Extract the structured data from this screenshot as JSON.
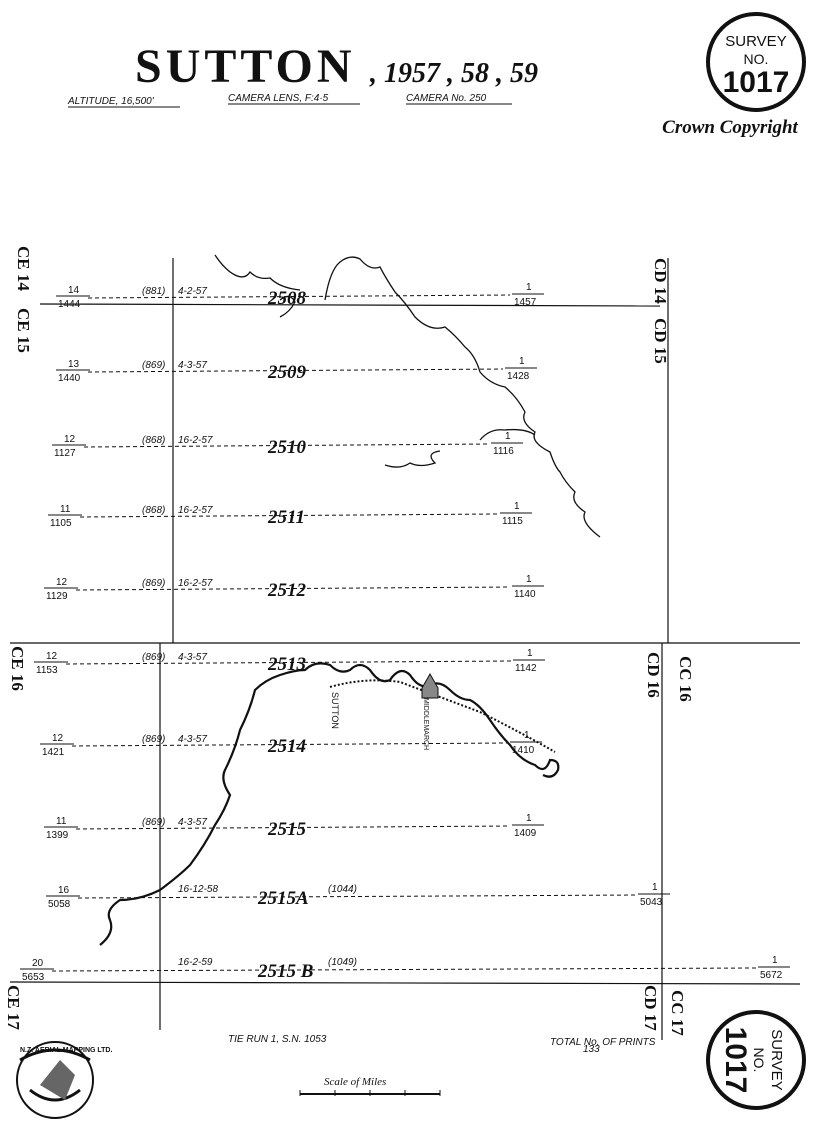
{
  "header": {
    "title": "SUTTON",
    "years": ", 1957 , 58 , 59",
    "altitude": "ALTITUDE, 16,500'",
    "lens": "CAMERA LENS, F:4·5",
    "camera": "CAMERA No. 250",
    "copyright": "Crown Copyright"
  },
  "badge": {
    "survey": "SURVEY",
    "no": "NO.",
    "number": "1017"
  },
  "grid_labels": {
    "ce14": "CE 14",
    "ce15": "CE 15",
    "cd14": "CD 14",
    "cd15": "CD 15",
    "ce16": "CE 16",
    "cd16": "CD 16",
    "cc16": "CC 16",
    "ce17": "CE 17",
    "cd17": "CD 17",
    "cc17": "CC 17"
  },
  "runs": [
    {
      "name": "2508",
      "left_top": "14",
      "left_bottom": "1444",
      "ref": "(881)",
      "date": "4-2-57",
      "right_top": "1",
      "right_bottom": "1457"
    },
    {
      "name": "2509",
      "left_top": "13",
      "left_bottom": "1440",
      "ref": "(869)",
      "date": "4-3-57",
      "right_top": "1",
      "right_bottom": "1428"
    },
    {
      "name": "2510",
      "left_top": "12",
      "left_bottom": "1127",
      "ref": "(868)",
      "date": "16-2-57",
      "right_top": "1",
      "right_bottom": "1116"
    },
    {
      "name": "2511",
      "left_top": "11",
      "left_bottom": "1105",
      "ref": "(868)",
      "date": "16-2-57",
      "right_top": "1",
      "right_bottom": "1115"
    },
    {
      "name": "2512",
      "left_top": "12",
      "left_bottom": "1129",
      "ref": "(869)",
      "date": "16-2-57",
      "right_top": "1",
      "right_bottom": "1140"
    },
    {
      "name": "2513",
      "left_top": "12",
      "left_bottom": "1153",
      "ref": "(869)",
      "date": "4-3-57",
      "right_top": "1",
      "right_bottom": "1142"
    },
    {
      "name": "2514",
      "left_top": "12",
      "left_bottom": "1421",
      "ref": "(869)",
      "date": "4-3-57",
      "right_top": "1",
      "right_bottom": "1410"
    },
    {
      "name": "2515",
      "left_top": "11",
      "left_bottom": "1399",
      "ref": "(869)",
      "date": "4-3-57",
      "right_top": "1",
      "right_bottom": "1409"
    },
    {
      "name": "2515A",
      "left_top": "16",
      "left_bottom": "5058",
      "ref": "(1044)",
      "date": "16-12-58",
      "right_top": "1",
      "right_bottom": "5043"
    },
    {
      "name": "2515 B",
      "left_top": "20",
      "left_bottom": "5653",
      "ref": "(1049)",
      "date": "16-2-59",
      "right_top": "1",
      "right_bottom": "5672"
    }
  ],
  "places": {
    "sutton": "SUTTON",
    "middlemarch": "MIDDLEMARCH"
  },
  "footer": {
    "tie": "TIE   RUN 1, S.N. 1053",
    "prints": "TOTAL No. OF PRINTS",
    "prints_count": "133",
    "scale": "Scale of Miles",
    "logo": "N.Z. AERIAL MAPPING LTD."
  }
}
